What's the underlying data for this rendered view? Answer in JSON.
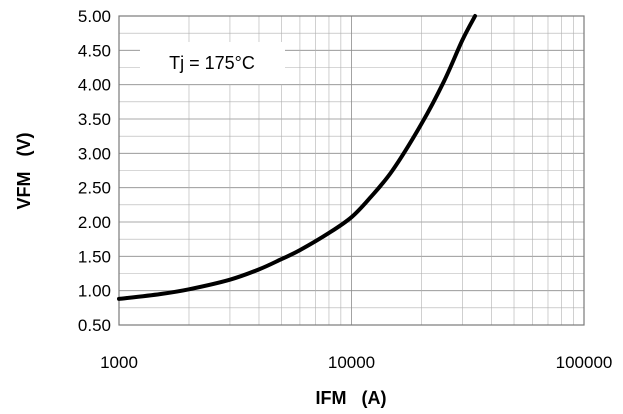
{
  "chart_data": {
    "type": "line",
    "xlabel": "IFM   (A)",
    "ylabel": "VFM   (V)",
    "x_scale": "log",
    "xlim": [
      1000,
      100000
    ],
    "ylim": [
      0.5,
      5.0
    ],
    "x_ticks": [
      "1000",
      "10000",
      "100000"
    ],
    "y_ticks": [
      "0.50",
      "1.00",
      "1.50",
      "2.00",
      "2.50",
      "3.00",
      "3.50",
      "4.00",
      "4.50",
      "5.00"
    ],
    "grid": true,
    "annotation": "Tj = 175°C",
    "series": [
      {
        "color": "#000000",
        "x": [
          1000,
          1500,
          2000,
          3000,
          4000,
          5000,
          6000,
          8000,
          10000,
          12000,
          15000,
          20000,
          25000,
          30000,
          34000
        ],
        "y": [
          0.88,
          0.95,
          1.02,
          1.16,
          1.31,
          1.46,
          1.59,
          1.84,
          2.07,
          2.35,
          2.75,
          3.43,
          4.05,
          4.65,
          5.0
        ]
      }
    ]
  }
}
